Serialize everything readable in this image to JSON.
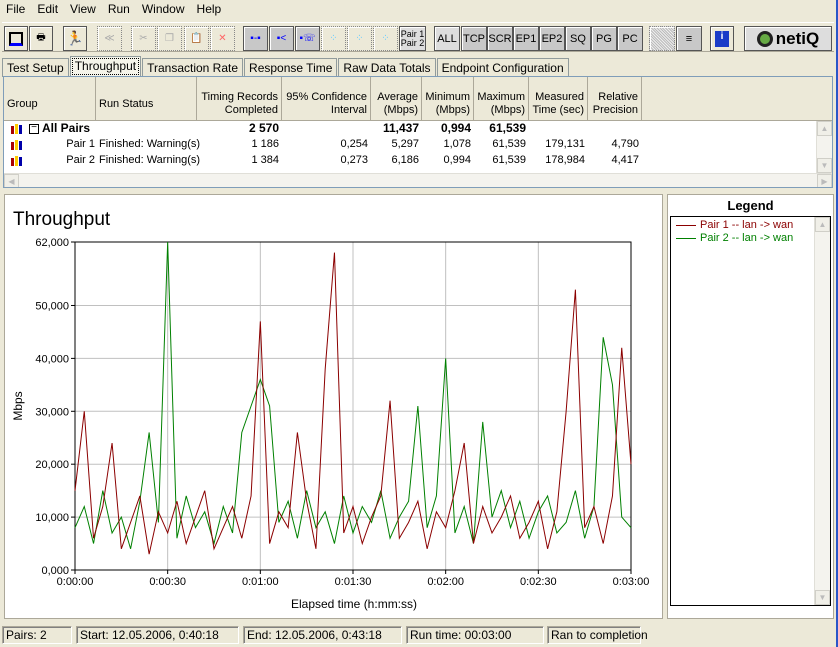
{
  "menu": [
    "File",
    "Edit",
    "View",
    "Run",
    "Window",
    "Help"
  ],
  "toolbar": {
    "icons": [
      "save-icon",
      "print-icon",
      "run-icon",
      "stop-icon",
      "cut-icon",
      "copy-icon",
      "paste-icon",
      "delete-icon",
      "pair-icon",
      "multicast-icon",
      "voip-pair-icon",
      "edit-pair-icon",
      "rename-pair-icon",
      "select-pair-icon"
    ],
    "pair_toggle": [
      "Pair 1",
      "Pair 2"
    ],
    "filters": [
      "ALL",
      "TCP",
      "SCR",
      "EP1",
      "EP2",
      "SQ",
      "PG",
      "PC"
    ],
    "logo": "netiQ"
  },
  "tabs": [
    "Test Setup",
    "Throughput",
    "Transaction Rate",
    "Response Time",
    "Raw Data Totals",
    "Endpoint Configuration"
  ],
  "active_tab": "Throughput",
  "table": {
    "headers": [
      "Group",
      "Run Status",
      "Timing Records Completed",
      "95% Confidence Interval",
      "Average (Mbps)",
      "Minimum (Mbps)",
      "Maximum (Mbps)",
      "Measured Time (sec)",
      "Relative Precision"
    ],
    "summary": {
      "group": "All Pairs",
      "records": "2 570",
      "average": "11,437",
      "minimum": "0,994",
      "maximum": "61,539"
    },
    "rows": [
      {
        "group": "Pair 1",
        "status": "Finished: Warning(s)",
        "records": "1 186",
        "ci": "0,254",
        "average": "5,297",
        "minimum": "1,078",
        "maximum": "61,539",
        "time": "179,131",
        "precision": "4,790"
      },
      {
        "group": "Pair 2",
        "status": "Finished: Warning(s)",
        "records": "1 384",
        "ci": "0,273",
        "average": "6,186",
        "minimum": "0,994",
        "maximum": "61,539",
        "time": "178,984",
        "precision": "4,417"
      }
    ]
  },
  "legend": {
    "title": "Legend",
    "items": [
      "Pair 1 -- lan -> wan",
      "Pair 2 -- lan -> wan"
    ]
  },
  "colors": {
    "pair1": "#8b0000",
    "pair2": "#008000",
    "window_bg": "#ece9d8"
  },
  "chart_data": {
    "type": "line",
    "title": "Throughput",
    "xlabel": "Elapsed time (h:mm:ss)",
    "ylabel": "Mbps",
    "xlim": [
      0,
      180
    ],
    "ylim": [
      0,
      62000
    ],
    "x_ticks": [
      0,
      30,
      60,
      90,
      120,
      150,
      180
    ],
    "x_tick_labels": [
      "0:00:00",
      "0:00:30",
      "0:01:00",
      "0:01:30",
      "0:02:00",
      "0:02:30",
      "0:03:00"
    ],
    "y_ticks": [
      0,
      10000,
      20000,
      30000,
      40000,
      50000,
      62000
    ],
    "y_tick_labels": [
      "0,000",
      "10,000",
      "20,000",
      "30,000",
      "40,000",
      "50,000",
      "62,000"
    ],
    "grid": true,
    "x_step_seconds": 3,
    "series": [
      {
        "name": "Pair 1 -- lan -> wan",
        "color": "#8b0000",
        "values": [
          15000,
          30000,
          6000,
          12000,
          24000,
          4000,
          9000,
          14000,
          3000,
          11000,
          7000,
          13000,
          5000,
          10000,
          15000,
          4000,
          8000,
          12000,
          6000,
          14000,
          47000,
          5000,
          11000,
          8000,
          26000,
          13000,
          4000,
          38000,
          60000,
          7000,
          12000,
          5000,
          10000,
          14000,
          32000,
          6000,
          9000,
          13000,
          4000,
          11000,
          8000,
          15000,
          24000,
          5000,
          12000,
          7000,
          10000,
          14000,
          6000,
          9000,
          13000,
          4000,
          11000,
          30000,
          53000,
          8000,
          12000,
          5000,
          14000,
          42000,
          20000
        ]
      },
      {
        "name": "Pair 2 -- lan -> wan",
        "color": "#008000",
        "values": [
          8000,
          12000,
          5000,
          15000,
          7000,
          10000,
          4000,
          13000,
          26000,
          9000,
          62000,
          6000,
          14000,
          8000,
          11000,
          5000,
          12000,
          7000,
          26000,
          31000,
          36000,
          31000,
          9000,
          13000,
          6000,
          15000,
          8000,
          11000,
          5000,
          14000,
          7000,
          12000,
          9000,
          15000,
          6000,
          10000,
          13000,
          31000,
          8000,
          14000,
          40000,
          7000,
          12000,
          5000,
          28000,
          10000,
          15000,
          8000,
          13000,
          6000,
          11000,
          14000,
          7000,
          9000,
          15000,
          6000,
          12000,
          44000,
          35000,
          10000,
          8000
        ]
      }
    ]
  },
  "status": [
    "Pairs: 2",
    "Start: 12.05.2006, 0:40:18",
    "End: 12.05.2006, 0:43:18",
    "Run time: 00:03:00",
    "Ran to completion"
  ]
}
